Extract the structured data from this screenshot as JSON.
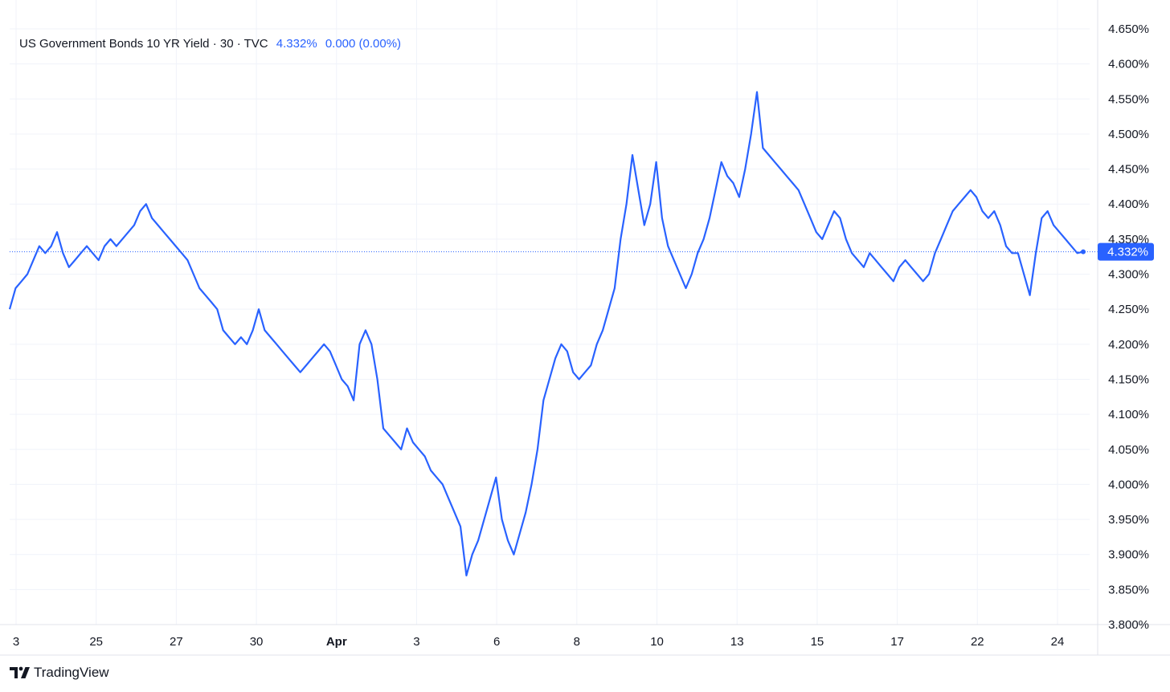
{
  "legend": {
    "title": "US Government Bonds 10 YR Yield · 30 · TVC",
    "last_value": "4.332%",
    "change": "0.000 (0.00%)"
  },
  "brand": {
    "name": "TradingView",
    "logo_icon": "tradingview-logo-icon"
  },
  "colors": {
    "series": "#2962ff",
    "grid": "#f0f3fa",
    "price_label_bg": "#2962ff"
  },
  "chart_data": {
    "type": "line",
    "title": "US Government Bonds 10 YR Yield",
    "interval": "30",
    "source": "TVC",
    "ylim": [
      3.8,
      4.65
    ],
    "y_ticks": [
      "4.650%",
      "4.600%",
      "4.550%",
      "4.500%",
      "4.450%",
      "4.400%",
      "4.350%",
      "4.300%",
      "4.250%",
      "4.200%",
      "4.150%",
      "4.100%",
      "4.050%",
      "4.000%",
      "3.950%",
      "3.900%",
      "3.850%",
      "3.800%"
    ],
    "x_ticks": [
      {
        "label": "3",
        "bold": false
      },
      {
        "label": "25",
        "bold": false
      },
      {
        "label": "27",
        "bold": false
      },
      {
        "label": "30",
        "bold": false
      },
      {
        "label": "Apr",
        "bold": true
      },
      {
        "label": "3",
        "bold": false
      },
      {
        "label": "6",
        "bold": false
      },
      {
        "label": "8",
        "bold": false
      },
      {
        "label": "10",
        "bold": false
      },
      {
        "label": "13",
        "bold": false
      },
      {
        "label": "15",
        "bold": false
      },
      {
        "label": "17",
        "bold": false
      },
      {
        "label": "22",
        "bold": false
      },
      {
        "label": "24",
        "bold": false
      }
    ],
    "current_price": 4.332,
    "current_price_label": "4.332%",
    "grid": true,
    "series": [
      {
        "values": [
          4.25,
          4.28,
          4.29,
          4.3,
          4.32,
          4.34,
          4.33,
          4.34,
          4.36,
          4.33,
          4.31,
          4.32,
          4.33,
          4.34,
          4.33,
          4.32,
          4.34,
          4.35,
          4.34,
          4.35,
          4.36,
          4.37,
          4.39,
          4.4,
          4.38,
          4.37,
          4.36,
          4.35,
          4.34,
          4.33,
          4.32,
          4.3,
          4.28,
          4.27,
          4.26,
          4.25,
          4.22,
          4.21,
          4.2,
          4.21,
          4.2,
          4.22,
          4.25,
          4.22,
          4.21,
          4.2,
          4.19,
          4.18,
          4.17,
          4.16,
          4.17,
          4.18,
          4.19,
          4.2,
          4.19,
          4.17,
          4.15,
          4.14,
          4.12,
          4.2,
          4.22,
          4.2,
          4.15,
          4.08,
          4.07,
          4.06,
          4.05,
          4.08,
          4.06,
          4.05,
          4.04,
          4.02,
          4.01,
          4.0,
          3.98,
          3.96,
          3.94,
          3.87,
          3.9,
          3.92,
          3.95,
          3.98,
          4.01,
          3.95,
          3.92,
          3.9,
          3.93,
          3.96,
          4.0,
          4.05,
          4.12,
          4.15,
          4.18,
          4.2,
          4.19,
          4.16,
          4.15,
          4.16,
          4.17,
          4.2,
          4.22,
          4.25,
          4.28,
          4.35,
          4.4,
          4.47,
          4.42,
          4.37,
          4.4,
          4.46,
          4.38,
          4.34,
          4.32,
          4.3,
          4.28,
          4.3,
          4.33,
          4.35,
          4.38,
          4.42,
          4.46,
          4.44,
          4.43,
          4.41,
          4.45,
          4.5,
          4.56,
          4.48,
          4.47,
          4.46,
          4.45,
          4.44,
          4.43,
          4.42,
          4.4,
          4.38,
          4.36,
          4.35,
          4.37,
          4.39,
          4.38,
          4.35,
          4.33,
          4.32,
          4.31,
          4.33,
          4.32,
          4.31,
          4.3,
          4.29,
          4.31,
          4.32,
          4.31,
          4.3,
          4.29,
          4.3,
          4.33,
          4.35,
          4.37,
          4.39,
          4.4,
          4.41,
          4.42,
          4.41,
          4.39,
          4.38,
          4.39,
          4.37,
          4.34,
          4.33,
          4.33,
          4.3,
          4.27,
          4.33,
          4.38,
          4.39,
          4.37,
          4.36,
          4.35,
          4.34,
          4.33,
          4.332
        ]
      }
    ]
  }
}
